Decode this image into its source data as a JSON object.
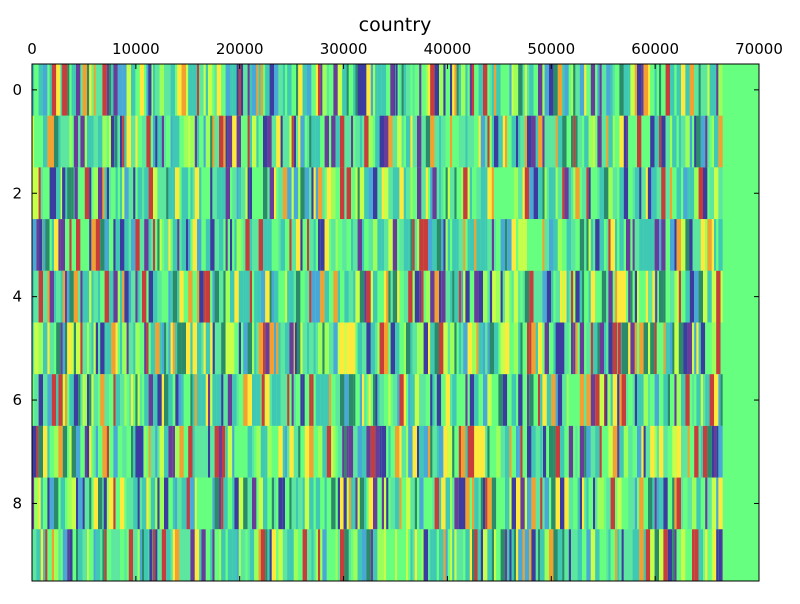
{
  "chart_data": {
    "type": "heatmap",
    "title": "country",
    "xlabel": "",
    "ylabel": "",
    "xlim": [
      0,
      70000
    ],
    "ylim": [
      9.5,
      -0.5
    ],
    "x_ticks": [
      0,
      10000,
      20000,
      30000,
      40000,
      50000,
      60000,
      70000
    ],
    "x_tick_labels": [
      "0",
      "10000",
      "20000",
      "30000",
      "40000",
      "50000",
      "60000",
      "70000"
    ],
    "y_ticks": [
      0,
      2,
      4,
      6,
      8
    ],
    "y_tick_labels": [
      "0",
      "2",
      "4",
      "6",
      "8"
    ],
    "x_axis_position": "top",
    "grid": false,
    "legend": "none",
    "rows": 10,
    "filled_extent": 66500,
    "background_value_color": "#66ff80",
    "palette": [
      "#66ff80",
      "#5ce6a0",
      "#3fc8b4",
      "#9cff5a",
      "#c8ff4a",
      "#ffea3c",
      "#f4a030",
      "#c83c3c",
      "#6a3c9a",
      "#3c3ca0",
      "#4aa8d8",
      "#2a8a6a"
    ],
    "row_stripes": [
      [
        [
          2900,
          3400,
          7
        ],
        [
          11200,
          11500,
          9
        ],
        [
          34500,
          34900,
          8
        ],
        [
          35000,
          35200,
          9
        ]
      ],
      [
        [
          7600,
          7900,
          9
        ],
        [
          7950,
          8200,
          11
        ]
      ],
      [
        [
          2900,
          3200,
          9
        ],
        [
          4100,
          4400,
          8
        ],
        [
          59300,
          59600,
          9
        ]
      ],
      [
        [
          700,
          1000,
          9
        ],
        [
          63300,
          63600,
          9
        ],
        [
          55500,
          55700,
          7
        ]
      ],
      [
        [
          44100,
          44300,
          9
        ],
        [
          51900,
          52100,
          7
        ],
        [
          60000,
          60200,
          8
        ]
      ],
      [
        [
          17400,
          17600,
          9
        ],
        [
          25300,
          25500,
          9
        ],
        [
          56400,
          56700,
          7
        ]
      ],
      [
        [
          13800,
          14100,
          9
        ],
        [
          22100,
          22400,
          7
        ],
        [
          55200,
          55400,
          9
        ]
      ],
      [
        [
          10300,
          10700,
          9
        ],
        [
          18300,
          18600,
          7
        ],
        [
          49200,
          49500,
          9
        ]
      ],
      [
        [
          6900,
          7200,
          9
        ],
        [
          14900,
          15200,
          7
        ],
        [
          30000,
          30300,
          9
        ]
      ],
      [
        [
          3600,
          3900,
          9
        ],
        [
          11300,
          11600,
          9
        ],
        [
          42600,
          42900,
          7
        ],
        [
          66100,
          66400,
          9
        ]
      ]
    ]
  }
}
